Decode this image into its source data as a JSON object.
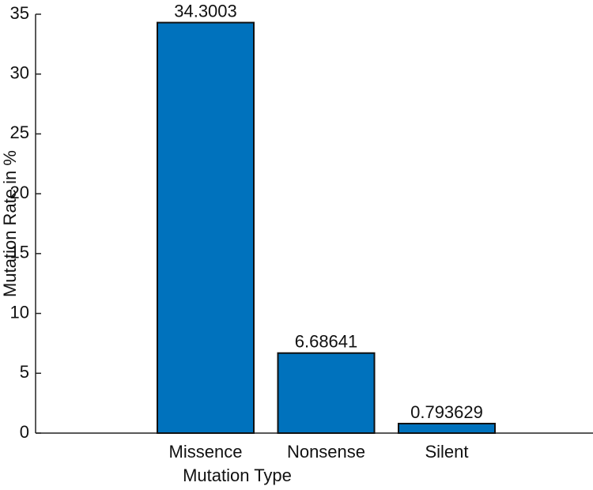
{
  "chart_data": {
    "type": "bar",
    "x_label": "Mutation Type",
    "y_label": "Mutation Rate in %",
    "categories": [
      "Missence",
      "Nonsense",
      "Silent"
    ],
    "values": [
      34.3003,
      6.68641,
      0.793629
    ],
    "color": "#0072bd",
    "ylim": [
      0,
      35
    ],
    "yticks": [
      0,
      5,
      10,
      15,
      20,
      25,
      30,
      35
    ],
    "grid": false
  }
}
